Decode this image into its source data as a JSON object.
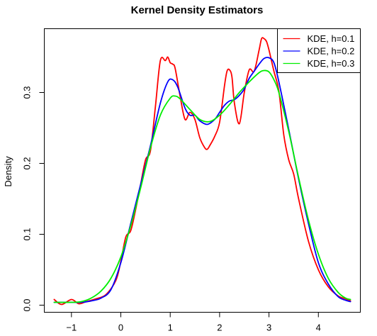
{
  "chart_data": {
    "type": "line",
    "title": "Kernel Density Estimators",
    "xlabel": "",
    "ylabel": "Density",
    "xlim": [
      -1.55,
      4.85
    ],
    "ylim": [
      -0.01,
      0.39
    ],
    "x_ticks": [
      -1,
      0,
      1,
      2,
      3,
      4
    ],
    "x_tick_labels": [
      "−1",
      "0",
      "1",
      "2",
      "3",
      "4"
    ],
    "y_ticks": [
      0.0,
      0.1,
      0.2,
      0.3
    ],
    "y_tick_labels": [
      "0.0",
      "0.1",
      "0.2",
      "0.3"
    ],
    "grid": false,
    "legend_position": "top-right",
    "series": [
      {
        "name": "KDE, h=0.1",
        "color": "#ff0000",
        "x": [
          -1.35,
          -1.2,
          -1.0,
          -0.85,
          -0.7,
          -0.5,
          -0.3,
          -0.1,
          0.0,
          0.1,
          0.2,
          0.3,
          0.4,
          0.5,
          0.6,
          0.7,
          0.8,
          0.9,
          0.95,
          1.0,
          1.05,
          1.1,
          1.2,
          1.3,
          1.4,
          1.5,
          1.6,
          1.7,
          1.75,
          1.8,
          1.9,
          2.0,
          2.1,
          2.15,
          2.2,
          2.25,
          2.3,
          2.4,
          2.5,
          2.6,
          2.7,
          2.8,
          2.85,
          2.9,
          2.95,
          3.0,
          3.1,
          3.2,
          3.3,
          3.4,
          3.5,
          3.6,
          3.8,
          4.0,
          4.2,
          4.4,
          4.55,
          4.65
        ],
        "y": [
          0.008,
          0.001,
          0.008,
          0.002,
          0.005,
          0.009,
          0.015,
          0.035,
          0.062,
          0.096,
          0.105,
          0.135,
          0.17,
          0.205,
          0.218,
          0.28,
          0.345,
          0.345,
          0.35,
          0.342,
          0.34,
          0.334,
          0.295,
          0.262,
          0.272,
          0.262,
          0.236,
          0.222,
          0.22,
          0.225,
          0.238,
          0.258,
          0.31,
          0.33,
          0.332,
          0.322,
          0.285,
          0.256,
          0.3,
          0.332,
          0.33,
          0.36,
          0.376,
          0.376,
          0.372,
          0.36,
          0.33,
          0.302,
          0.24,
          0.205,
          0.185,
          0.15,
          0.09,
          0.05,
          0.026,
          0.013,
          0.009,
          0.006
        ]
      },
      {
        "name": "KDE, h=0.2",
        "color": "#0000ff",
        "x": [
          -1.35,
          -1.0,
          -0.8,
          -0.6,
          -0.4,
          -0.2,
          0.0,
          0.2,
          0.4,
          0.6,
          0.8,
          0.95,
          1.05,
          1.15,
          1.3,
          1.4,
          1.5,
          1.6,
          1.75,
          1.9,
          2.0,
          2.1,
          2.2,
          2.3,
          2.4,
          2.5,
          2.6,
          2.7,
          2.8,
          2.9,
          3.0,
          3.1,
          3.2,
          3.4,
          3.6,
          3.8,
          4.0,
          4.2,
          4.4,
          4.55,
          4.65
        ],
        "y": [
          0.004,
          0.004,
          0.004,
          0.006,
          0.01,
          0.022,
          0.06,
          0.115,
          0.17,
          0.225,
          0.285,
          0.315,
          0.318,
          0.308,
          0.278,
          0.268,
          0.268,
          0.26,
          0.255,
          0.262,
          0.272,
          0.282,
          0.288,
          0.29,
          0.296,
          0.305,
          0.32,
          0.33,
          0.34,
          0.348,
          0.349,
          0.342,
          0.315,
          0.248,
          0.178,
          0.115,
          0.06,
          0.03,
          0.012,
          0.007,
          0.005
        ]
      },
      {
        "name": "KDE, h=0.3",
        "color": "#00ee00",
        "x": [
          -1.35,
          -1.0,
          -0.8,
          -0.6,
          -0.4,
          -0.2,
          0.0,
          0.2,
          0.4,
          0.6,
          0.8,
          1.0,
          1.1,
          1.2,
          1.4,
          1.6,
          1.8,
          2.0,
          2.2,
          2.4,
          2.6,
          2.8,
          2.9,
          3.0,
          3.1,
          3.2,
          3.4,
          3.6,
          3.8,
          4.0,
          4.2,
          4.4,
          4.55,
          4.65
        ],
        "y": [
          0.004,
          0.004,
          0.005,
          0.01,
          0.02,
          0.038,
          0.068,
          0.112,
          0.165,
          0.222,
          0.268,
          0.292,
          0.295,
          0.291,
          0.276,
          0.262,
          0.259,
          0.268,
          0.283,
          0.3,
          0.315,
          0.328,
          0.331,
          0.329,
          0.318,
          0.3,
          0.245,
          0.18,
          0.12,
          0.072,
          0.038,
          0.018,
          0.01,
          0.008
        ]
      }
    ]
  }
}
